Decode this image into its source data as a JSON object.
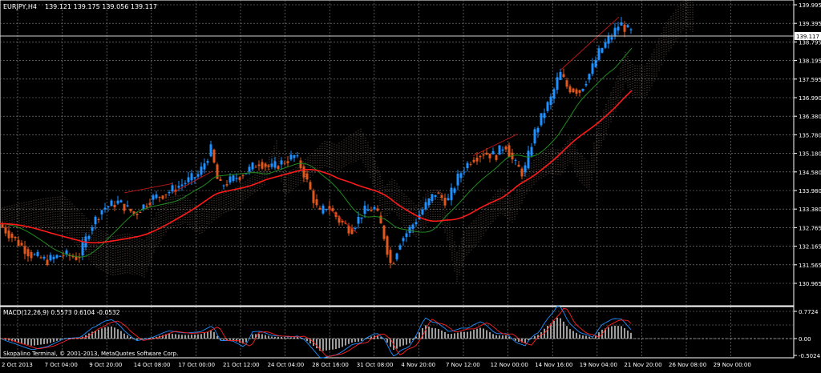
{
  "main_panel": {
    "symbol_label": "EURJPY,H4",
    "ohlc_label": "139.121 139.175 139.056 139.117",
    "current_price": "139.117",
    "price_labels": [
      "139.995",
      "139.395",
      "138.795",
      "138.195",
      "137.595",
      "136.990",
      "136.380",
      "135.780",
      "135.180",
      "134.580",
      "133.980",
      "133.380",
      "132.765",
      "132.165",
      "131.565",
      "130.965"
    ]
  },
  "macd_panel": {
    "label": "MACD(12,26,9) 0.5573 0.6104 -0.0532",
    "level_labels": [
      "0.7724",
      "0.00",
      "-0.5024"
    ],
    "copyright": "Skopalino Terminal, © 2001-2013, MetaQuotes Software Corp."
  },
  "time_axis": {
    "labels": [
      "2 Oct 2013",
      "7 Oct 04:00",
      "9 Oct 20:00",
      "14 Oct 08:00",
      "17 Oct 00:00",
      "21 Oct 12:00",
      "24 Oct 04:00",
      "28 Oct 16:00",
      "31 Oct 08:00",
      "4 Nov 20:00",
      "7 Nov 12:00",
      "12 Nov 00:00",
      "14 Nov 16:00",
      "19 Nov 04:00",
      "21 Nov 20:00",
      "26 Nov 08:00",
      "29 Nov 00:00"
    ]
  },
  "colors": {
    "background": "#000000",
    "grid": "#8a8a8a",
    "bull_candle": "#1e90ff",
    "bear_candle": "#e2571e",
    "ma_fast": "#228b22",
    "ma_slow": "#ff1a1a",
    "cloud_a": "#e0b8a0",
    "cloud_b": "#d0d0d0",
    "macd_line": "#1e90ff",
    "signal_line": "#ff2020",
    "histogram": "#e0e0e0",
    "axis_text": "#ffffff"
  }
}
